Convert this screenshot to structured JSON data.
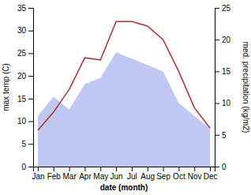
{
  "chart_data": {
    "type": "line",
    "xlabel": "date (month)",
    "ylabel": "max temp (C)",
    "y2label": "med. precipitation (kg/m2)",
    "categories": [
      "Jan",
      "Feb",
      "Mar",
      "Apr",
      "May",
      "Jun",
      "Jul",
      "Aug",
      "Sep",
      "Oct",
      "Nov",
      "Dec"
    ],
    "series": [
      {
        "type": "area",
        "axis": "y2",
        "color": "#bfc8f0",
        "values": [
          8,
          11,
          9,
          13,
          14,
          18,
          17,
          16,
          15,
          10,
          8,
          6
        ]
      },
      {
        "type": "line",
        "color": "#a83232",
        "values": [
          8,
          12,
          17,
          24,
          23.5,
          32,
          32,
          31,
          28,
          21,
          13,
          8.5
        ]
      }
    ],
    "ylim": [
      0,
      35
    ],
    "yticks": [
      0,
      5,
      10,
      15,
      20,
      25,
      30,
      35
    ],
    "y2lim": [
      0,
      25
    ],
    "y2ticks": [
      0,
      5,
      10,
      15,
      20,
      25
    ],
    "grid": false
  }
}
